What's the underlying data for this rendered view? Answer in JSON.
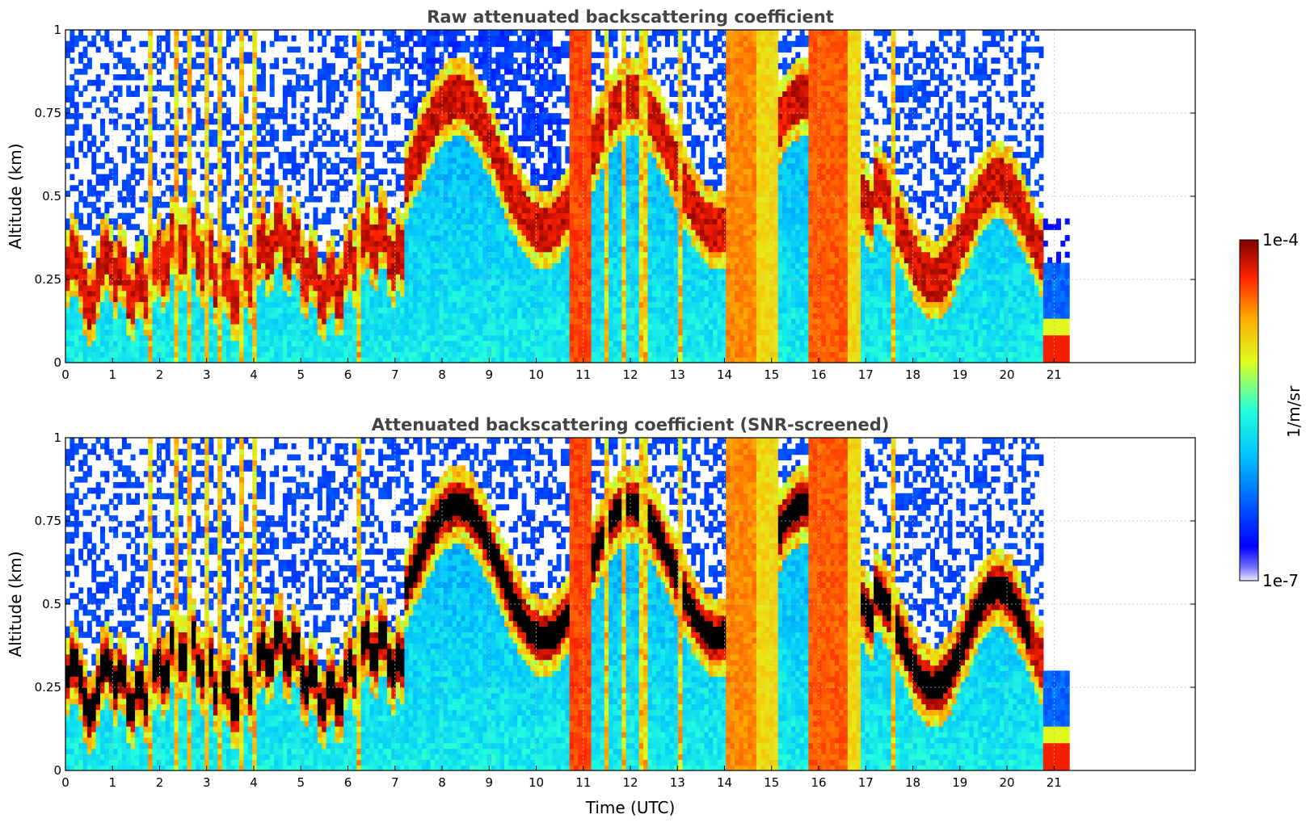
{
  "chart_data": [
    {
      "type": "heatmap",
      "title": "Raw attenuated backscattering coefficient",
      "xlabel": "",
      "ylabel": "Altitude (km)",
      "xlim": [
        0,
        24
      ],
      "ylim": [
        0,
        1
      ],
      "x_ticks": [
        "0",
        "1",
        "2",
        "3",
        "4",
        "5",
        "6",
        "7",
        "8",
        "9",
        "10",
        "11",
        "12",
        "13",
        "14",
        "15",
        "16",
        "17",
        "18",
        "19",
        "20",
        "21"
      ],
      "y_ticks": [
        "0",
        "0.25",
        "0.5",
        "0.75",
        "1"
      ],
      "grid": true,
      "data_end_time": 21.3,
      "screened": false
    },
    {
      "type": "heatmap",
      "title": "Attenuated backscattering coefficient (SNR-screened)",
      "xlabel": "Time (UTC)",
      "ylabel": "Altitude (km)",
      "xlim": [
        0,
        24
      ],
      "ylim": [
        0,
        1
      ],
      "x_ticks": [
        "0",
        "1",
        "2",
        "3",
        "4",
        "5",
        "6",
        "7",
        "8",
        "9",
        "10",
        "11",
        "12",
        "13",
        "14",
        "15",
        "16",
        "17",
        "18",
        "19",
        "20",
        "21"
      ],
      "y_ticks": [
        "0",
        "0.25",
        "0.5",
        "0.75",
        "1"
      ],
      "grid": true,
      "data_end_time": 21.3,
      "screened": true
    }
  ],
  "colorbar": {
    "label": "1/m/sr",
    "max_label": "1e-4",
    "min_label": "1e-7",
    "colormap": "jet",
    "min_color": "#eaeaff",
    "max_color": "#800000"
  }
}
